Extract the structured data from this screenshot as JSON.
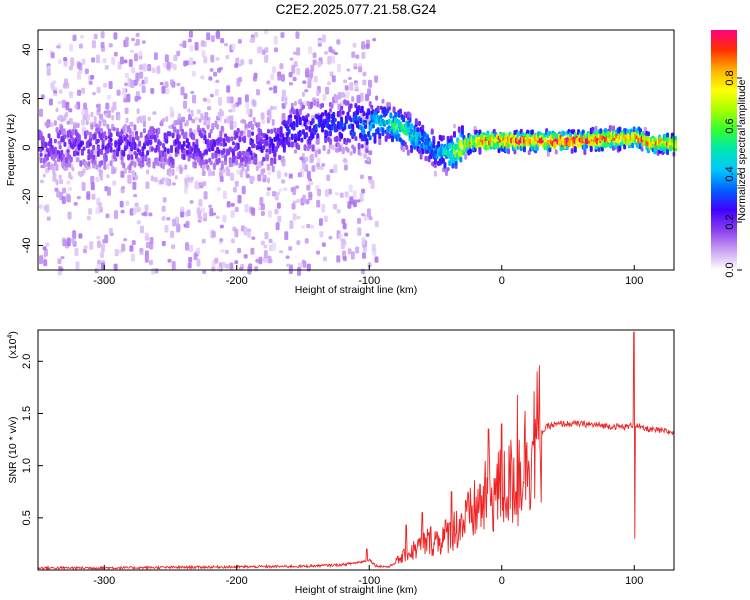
{
  "title": "C2E2.2025.077.21.58.G24",
  "colors": {
    "snr_line": "#ee2222",
    "axis": "#000000",
    "colormap": [
      "#ffffff",
      "#c9a0f2",
      "#8a3ef0",
      "#3f00ff",
      "#0060ff",
      "#00c8ff",
      "#00e6b4",
      "#32ff32",
      "#aaff00",
      "#ffff00",
      "#ffb000",
      "#ff3000",
      "#ff0080"
    ]
  },
  "chart_data": [
    {
      "type": "heatmap",
      "name": "spectrogram",
      "xlabel": "Height of straight line (km)",
      "ylabel": "Frequency (Hz)",
      "xlim": [
        -350,
        130
      ],
      "ylim": [
        -50,
        48
      ],
      "xticks": [
        -300,
        -200,
        -100,
        0,
        100
      ],
      "xtick_labels": [
        "-300",
        "-200",
        "-100",
        "0",
        "100"
      ],
      "yticks": [
        -40,
        -20,
        0,
        20,
        40
      ],
      "ytick_labels": [
        "-40",
        "-20",
        "0",
        "20",
        "40"
      ],
      "colorbar": {
        "label": "Normalized spectral amplitude",
        "range": [
          0,
          1
        ],
        "ticks": [
          0,
          0.2,
          0.4,
          0.6,
          0.8
        ],
        "tick_labels": [
          "0.0",
          "0.2",
          "0.4",
          "0.6",
          "0.8"
        ]
      },
      "ridge": {
        "x": [
          -350,
          -300,
          -250,
          -200,
          -170,
          -160,
          -140,
          -120,
          -100,
          -90,
          -80,
          -70,
          -60,
          -50,
          -40,
          -30,
          -20,
          -10,
          0,
          20,
          40,
          60,
          80,
          95,
          100,
          110,
          130
        ],
        "freq": [
          1,
          1,
          1,
          1,
          2,
          8,
          9,
          10,
          9,
          11,
          9,
          6,
          3,
          -1,
          -2,
          1,
          3,
          3,
          3,
          3,
          3,
          3,
          4,
          4,
          5,
          2,
          2
        ],
        "amplitude": [
          0.2,
          0.22,
          0.22,
          0.22,
          0.25,
          0.28,
          0.3,
          0.3,
          0.4,
          0.5,
          0.55,
          0.55,
          0.4,
          0.4,
          0.55,
          0.8,
          0.88,
          0.92,
          0.95,
          0.98,
          1.0,
          0.98,
          0.95,
          0.9,
          0.95,
          0.88,
          0.85
        ]
      },
      "noise_region": {
        "x_range": [
          -350,
          -95
        ],
        "freq_range": [
          -50,
          48
        ],
        "amplitude": 0.05
      }
    },
    {
      "type": "line",
      "name": "snr",
      "xlabel": "Height of straight line (km)",
      "ylabel": "SNR (10 * v/v)",
      "y_multiplier_label": "(x10",
      "y_multiplier_exp": "4",
      "y_multiplier_close": ")",
      "xlim": [
        -350,
        130
      ],
      "ylim": [
        0,
        2.3
      ],
      "xticks": [
        -300,
        -200,
        -100,
        0,
        100
      ],
      "xtick_labels": [
        "-300",
        "-200",
        "-100",
        "0",
        "100"
      ],
      "yticks": [
        0.5,
        1.0,
        1.5,
        2.0
      ],
      "ytick_labels": [
        "0.5",
        "1.0",
        "1.5",
        "2.0"
      ],
      "baseline": {
        "x": [
          -350,
          -300,
          -250,
          -200,
          -150,
          -120,
          -105,
          -100,
          -95,
          -85,
          -75,
          -65,
          -55,
          -45,
          -35,
          -25,
          -15,
          -5,
          5,
          15,
          25,
          35,
          45,
          60,
          80,
          95,
          100,
          105,
          115,
          130
        ],
        "y": [
          0.02,
          0.02,
          0.025,
          0.03,
          0.035,
          0.05,
          0.08,
          0.1,
          0.04,
          0.03,
          0.12,
          0.2,
          0.28,
          0.3,
          0.4,
          0.5,
          0.65,
          0.75,
          0.8,
          1.0,
          1.25,
          1.38,
          1.4,
          1.4,
          1.38,
          1.37,
          1.4,
          1.36,
          1.34,
          1.32
        ]
      },
      "spikes": [
        {
          "x": -102,
          "y": 0.2
        },
        {
          "x": -72,
          "y": 0.43
        },
        {
          "x": -60,
          "y": 0.55
        },
        {
          "x": -38,
          "y": 0.75
        },
        {
          "x": -10,
          "y": 1.35
        },
        {
          "x": 0,
          "y": 1.4
        },
        {
          "x": 12,
          "y": 1.68
        },
        {
          "x": 100,
          "y": 2.28
        }
      ],
      "dips": [
        {
          "x": 100,
          "y": 0.3
        },
        {
          "x": 12,
          "y": 0.42
        }
      ]
    }
  ]
}
